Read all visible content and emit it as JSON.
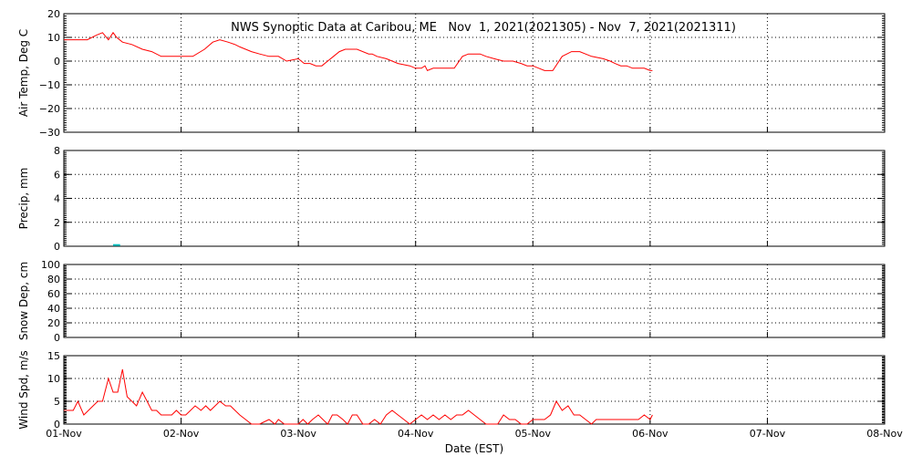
{
  "chart_data": {
    "type": "line",
    "title": "NWS Synoptic Data at Caribou, ME   Nov  1, 2021(2021305) - Nov  7, 2021(2021311)",
    "xlabel": "Date (EST)",
    "x_ticks": [
      "01-Nov",
      "02-Nov",
      "03-Nov",
      "04-Nov",
      "05-Nov",
      "06-Nov",
      "07-Nov",
      "08-Nov"
    ],
    "x_range_days": [
      0,
      7
    ],
    "panels": [
      {
        "ylabel": "Air Temp, Deg C",
        "ylim": [
          -30,
          20
        ],
        "yticks": [
          "20",
          "10",
          "0",
          "−10",
          "−20",
          "−30"
        ],
        "ytick_values": [
          20,
          10,
          0,
          -10,
          -20,
          -30
        ],
        "line_color": "#ff0000",
        "series": [
          {
            "x": [
              0,
              0.1,
              0.2,
              0.28,
              0.33,
              0.38,
              0.42,
              0.45,
              0.5,
              0.58,
              0.67,
              0.75,
              0.83,
              0.92,
              1.0,
              1.1,
              1.2,
              1.27,
              1.33,
              1.4,
              1.46,
              1.5,
              1.55,
              1.6,
              1.67,
              1.75,
              1.83,
              1.9,
              2.0,
              2.05,
              2.1,
              2.15,
              2.2,
              2.25,
              2.3,
              2.35,
              2.4,
              2.5,
              2.6,
              2.63,
              2.67,
              2.75,
              2.85,
              2.95,
              3.0,
              3.05,
              3.08,
              3.1,
              3.15,
              3.25,
              3.33,
              3.4,
              3.45,
              3.5,
              3.55,
              3.6,
              3.67,
              3.75,
              3.83,
              3.9,
              3.95,
              4.0,
              4.05,
              4.1,
              4.17,
              4.25,
              4.33,
              4.4,
              4.5,
              4.6,
              4.66,
              4.7,
              4.75,
              4.8,
              4.85,
              4.9,
              4.95,
              5.0,
              5.02
            ],
            "y": [
              9,
              9,
              9,
              11,
              12,
              9,
              12,
              10,
              8,
              7,
              5,
              4,
              2,
              2,
              2,
              2,
              5,
              8,
              9,
              8,
              7,
              6,
              5,
              4,
              3,
              2,
              2,
              0,
              1,
              -1,
              -1,
              -2,
              -2,
              0,
              2,
              4,
              5,
              5,
              3,
              3,
              2,
              1,
              -1,
              -2,
              -3,
              -3,
              -2,
              -4,
              -3,
              -3,
              -3,
              2,
              3,
              3,
              3,
              2,
              1,
              0,
              0,
              -1,
              -2,
              -2,
              -3,
              -4,
              -4,
              2,
              4,
              4,
              2,
              1,
              0,
              -1,
              -2,
              -2,
              -3,
              -3,
              -3,
              -4,
              -4
            ]
          }
        ]
      },
      {
        "ylabel": "Precip, mm",
        "ylim": [
          0,
          8
        ],
        "yticks": [
          "8",
          "6",
          "4",
          "2",
          "0"
        ],
        "ytick_values": [
          8,
          6,
          4,
          2,
          0
        ],
        "line_color": "#00c0c0",
        "series": [
          {
            "x": [
              0.42,
              0.48
            ],
            "y": [
              0.1,
              0.1
            ]
          }
        ]
      },
      {
        "ylabel": "Snow Dep, cm",
        "ylim": [
          0,
          100
        ],
        "yticks": [
          "100",
          "80",
          "60",
          "40",
          "20",
          "0"
        ],
        "ytick_values": [
          100,
          80,
          60,
          40,
          20,
          0
        ],
        "series": []
      },
      {
        "ylabel": "Wind Spd, m/s",
        "ylim": [
          0,
          15
        ],
        "yticks": [
          "15",
          "10",
          "5",
          "0"
        ],
        "ytick_values": [
          15,
          10,
          5,
          0
        ],
        "line_color": "#ff0000",
        "series": [
          {
            "x": [
              0,
              0.08,
              0.12,
              0.17,
              0.21,
              0.25,
              0.29,
              0.33,
              0.38,
              0.42,
              0.46,
              0.5,
              0.54,
              0.58,
              0.62,
              0.67,
              0.71,
              0.75,
              0.79,
              0.83,
              0.88,
              0.92,
              0.96,
              1.0,
              1.04,
              1.08,
              1.12,
              1.17,
              1.21,
              1.25,
              1.29,
              1.33,
              1.38,
              1.42,
              1.46,
              1.5,
              1.55,
              1.6,
              1.67,
              1.75,
              1.8,
              1.83,
              1.88,
              1.92,
              1.96,
              2.0,
              2.04,
              2.08,
              2.12,
              2.17,
              2.21,
              2.25,
              2.29,
              2.33,
              2.38,
              2.42,
              2.46,
              2.5,
              2.55,
              2.6,
              2.65,
              2.7,
              2.75,
              2.8,
              2.85,
              2.9,
              2.95,
              3.0,
              3.05,
              3.1,
              3.15,
              3.2,
              3.25,
              3.3,
              3.35,
              3.4,
              3.45,
              3.5,
              3.55,
              3.6,
              3.65,
              3.7,
              3.75,
              3.8,
              3.85,
              3.9,
              3.95,
              4.0,
              4.05,
              4.1,
              4.15,
              4.2,
              4.25,
              4.3,
              4.35,
              4.4,
              4.45,
              4.5,
              4.54,
              4.58,
              4.62,
              4.66,
              4.7,
              4.75,
              4.8,
              4.85,
              4.9,
              4.95,
              5.0,
              5.02
            ],
            "y": [
              3,
              3,
              5,
              2,
              3,
              4,
              5,
              5,
              10,
              7,
              7,
              12,
              6,
              5,
              4,
              7,
              5,
              3,
              3,
              2,
              2,
              2,
              3,
              2,
              2,
              3,
              4,
              3,
              4,
              3,
              4,
              5,
              4,
              4,
              3,
              2,
              1,
              0,
              0,
              1,
              0,
              1,
              0,
              0,
              0,
              0,
              1,
              0,
              1,
              2,
              1,
              0,
              2,
              2,
              1,
              0,
              2,
              2,
              0,
              0,
              1,
              0,
              2,
              3,
              2,
              1,
              0,
              1,
              2,
              1,
              2,
              1,
              2,
              1,
              2,
              2,
              3,
              2,
              1,
              0,
              0,
              0,
              2,
              1,
              1,
              0,
              0,
              1,
              1,
              1,
              2,
              5,
              3,
              4,
              2,
              2,
              1,
              0,
              1,
              1,
              1,
              1,
              1,
              1,
              1,
              1,
              1,
              2,
              1,
              2
            ]
          }
        ]
      }
    ]
  }
}
